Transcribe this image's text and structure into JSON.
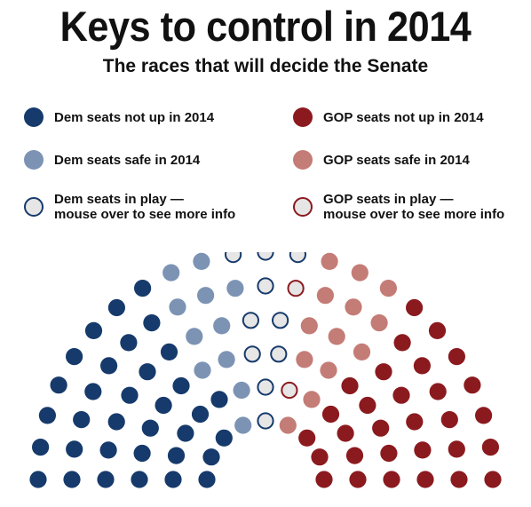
{
  "title": "Keys to control in 2014",
  "subtitle": "The races that will decide the Senate",
  "colors": {
    "dem_not_up": "#163a6b",
    "dem_safe": "#7c93b4",
    "dem_in_play_stroke": "#163a6b",
    "gop_not_up": "#8b1a1f",
    "gop_safe": "#c47c76",
    "gop_in_play_stroke": "#8b1a1f",
    "in_play_fill": "#e6e6e6"
  },
  "legend": {
    "dem_not_up": {
      "label": "Dem seats not up in 2014"
    },
    "dem_safe": {
      "label": "Dem seats safe in 2014"
    },
    "dem_in_play": {
      "label": "Dem seats in play —\nmouse over to see more info"
    },
    "gop_not_up": {
      "label": "GOP seats not up in 2014"
    },
    "gop_safe": {
      "label": "GOP seats safe in 2014"
    },
    "gop_in_play": {
      "label": "GOP seats in play —\nmouse over to see more info"
    }
  },
  "chart_data": {
    "type": "parliament",
    "total_seats": 100,
    "groups": [
      {
        "key": "dem_not_up",
        "seats": 34
      },
      {
        "key": "dem_safe",
        "seats": 11
      },
      {
        "key": "dem_in_play",
        "seats": 10
      },
      {
        "key": "gop_in_play",
        "seats": 2
      },
      {
        "key": "gop_safe",
        "seats": 13
      },
      {
        "key": "gop_not_up",
        "seats": 30
      }
    ]
  }
}
